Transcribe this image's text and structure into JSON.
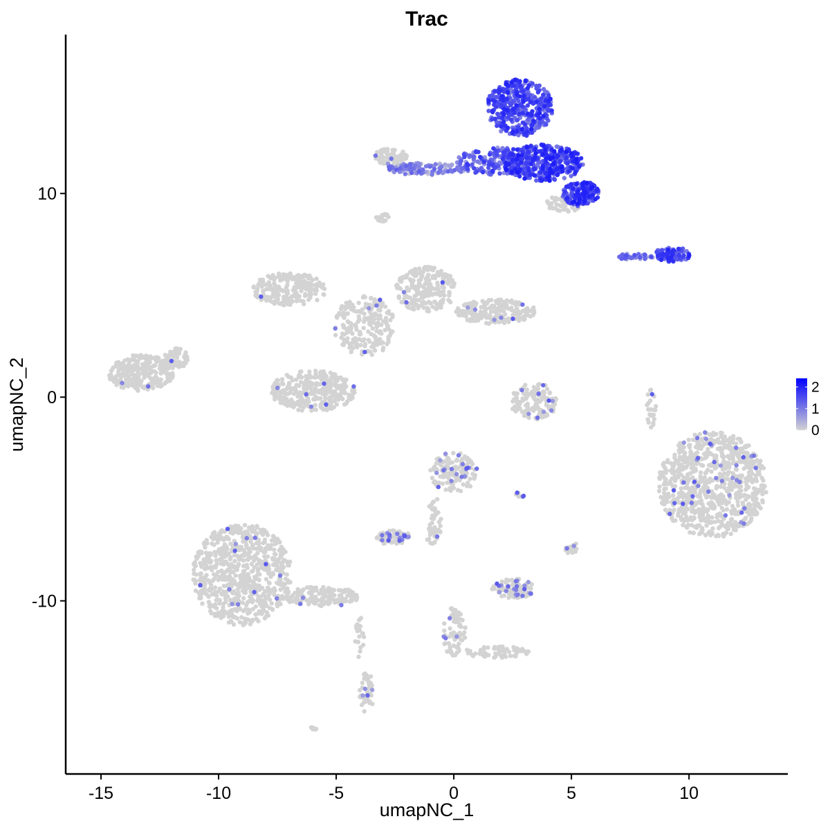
{
  "chart_data": {
    "type": "scatter",
    "title": "Trac",
    "xlabel": "umapNC_1",
    "ylabel": "umapNC_2",
    "xlim": [
      -16.5,
      14.2
    ],
    "ylim": [
      -18.5,
      17.8
    ],
    "x_ticks": [
      -15,
      -10,
      -5,
      0,
      5,
      10
    ],
    "y_ticks": [
      -10,
      0,
      10
    ],
    "x_tick_labels": [
      "-15",
      "-10",
      "-5",
      "0",
      "5",
      "10"
    ],
    "y_tick_labels": [
      "-10",
      "0",
      "10"
    ],
    "grid": false,
    "legend": {
      "position": "right",
      "type": "continuous",
      "min": 0,
      "max": 2.4,
      "low_color": "#d3d3d3",
      "high_color": "#0000ff",
      "tick_values": [
        0,
        1,
        2
      ],
      "tick_labels": [
        "0",
        "1",
        "2"
      ]
    },
    "point_color_low": "#d3d3d3",
    "point_color_high": "#0000ff",
    "clusters": [
      {
        "x": 2.8,
        "y": 14.2,
        "rx": 1.4,
        "ry": 1.4,
        "expr": 1.4,
        "n": 420
      },
      {
        "x": 3.8,
        "y": 11.5,
        "rx": 1.7,
        "ry": 0.9,
        "expr": 1.5,
        "n": 420
      },
      {
        "x": 5.4,
        "y": 10.0,
        "rx": 0.8,
        "ry": 0.6,
        "expr": 1.5,
        "n": 160
      },
      {
        "x": 1.7,
        "y": 11.6,
        "rx": 1.6,
        "ry": 0.7,
        "expr": 1.2,
        "n": 160
      },
      {
        "x": -1.2,
        "y": 11.2,
        "rx": 1.7,
        "ry": 0.3,
        "expr": 0.7,
        "n": 110
      },
      {
        "x": -2.7,
        "y": 11.8,
        "rx": 0.7,
        "ry": 0.4,
        "expr": 0.05,
        "n": 80
      },
      {
        "x": 9.3,
        "y": 7.0,
        "rx": 0.8,
        "ry": 0.35,
        "expr": 1.4,
        "n": 90
      },
      {
        "x": 7.7,
        "y": 6.9,
        "rx": 0.8,
        "ry": 0.15,
        "expr": 0.9,
        "n": 40
      },
      {
        "x": 4.7,
        "y": 9.5,
        "rx": 0.8,
        "ry": 0.4,
        "expr": 0.05,
        "n": 50
      },
      {
        "x": -3.0,
        "y": 8.8,
        "rx": 0.3,
        "ry": 0.2,
        "expr": 0.05,
        "n": 20
      },
      {
        "x": -7.0,
        "y": 5.3,
        "rx": 1.6,
        "ry": 0.8,
        "expr": 0.02,
        "n": 220
      },
      {
        "x": -1.2,
        "y": 5.3,
        "rx": 1.3,
        "ry": 1.1,
        "expr": 0.02,
        "n": 220
      },
      {
        "x": 1.8,
        "y": 4.2,
        "rx": 1.7,
        "ry": 0.6,
        "expr": 0.02,
        "n": 200
      },
      {
        "x": -3.8,
        "y": 3.5,
        "rx": 1.3,
        "ry": 1.5,
        "expr": 0.02,
        "n": 200
      },
      {
        "x": -6.0,
        "y": 0.3,
        "rx": 1.8,
        "ry": 1.0,
        "expr": 0.03,
        "n": 330
      },
      {
        "x": -13.3,
        "y": 1.2,
        "rx": 1.4,
        "ry": 0.9,
        "expr": 0.02,
        "n": 260
      },
      {
        "x": -11.8,
        "y": 1.9,
        "rx": 0.5,
        "ry": 0.5,
        "expr": 0.05,
        "n": 60
      },
      {
        "x": 3.4,
        "y": -0.2,
        "rx": 1.0,
        "ry": 0.9,
        "expr": 0.05,
        "n": 130
      },
      {
        "x": 8.4,
        "y": -0.5,
        "rx": 0.2,
        "ry": 1.0,
        "expr": 0.1,
        "n": 25
      },
      {
        "x": 11.0,
        "y": -4.3,
        "rx": 2.3,
        "ry": 2.6,
        "expr": 0.06,
        "n": 850
      },
      {
        "x": 0.0,
        "y": -3.7,
        "rx": 1.0,
        "ry": 1.0,
        "expr": 0.2,
        "n": 140
      },
      {
        "x": -0.8,
        "y": -6.0,
        "rx": 0.3,
        "ry": 1.1,
        "expr": 0.02,
        "n": 40
      },
      {
        "x": -2.6,
        "y": -6.9,
        "rx": 0.8,
        "ry": 0.35,
        "expr": 0.2,
        "n": 70
      },
      {
        "x": -9.0,
        "y": -8.7,
        "rx": 2.1,
        "ry": 2.5,
        "expr": 0.02,
        "n": 720
      },
      {
        "x": -5.6,
        "y": -9.8,
        "rx": 1.6,
        "ry": 0.5,
        "expr": 0.02,
        "n": 160
      },
      {
        "x": -3.7,
        "y": -14.5,
        "rx": 0.3,
        "ry": 1.0,
        "expr": 0.1,
        "n": 45
      },
      {
        "x": -4.0,
        "y": -11.8,
        "rx": 0.2,
        "ry": 1.0,
        "expr": 0.02,
        "n": 20
      },
      {
        "x": 2.5,
        "y": -9.4,
        "rx": 0.9,
        "ry": 0.5,
        "expr": 0.2,
        "n": 100
      },
      {
        "x": 0.0,
        "y": -11.5,
        "rx": 0.5,
        "ry": 1.2,
        "expr": 0.08,
        "n": 70
      },
      {
        "x": 1.8,
        "y": -12.5,
        "rx": 1.4,
        "ry": 0.3,
        "expr": 0.02,
        "n": 60
      },
      {
        "x": 5.0,
        "y": -7.4,
        "rx": 0.3,
        "ry": 0.3,
        "expr": 0.05,
        "n": 20
      },
      {
        "x": 2.8,
        "y": -4.8,
        "rx": 0.2,
        "ry": 0.15,
        "expr": 0.2,
        "n": 8
      },
      {
        "x": -6.0,
        "y": -16.3,
        "rx": 0.2,
        "ry": 0.1,
        "expr": 0.0,
        "n": 6
      },
      {
        "x": -1.0,
        "y": -7.1,
        "rx": 0.2,
        "ry": 0.15,
        "expr": 0.02,
        "n": 6
      }
    ]
  }
}
